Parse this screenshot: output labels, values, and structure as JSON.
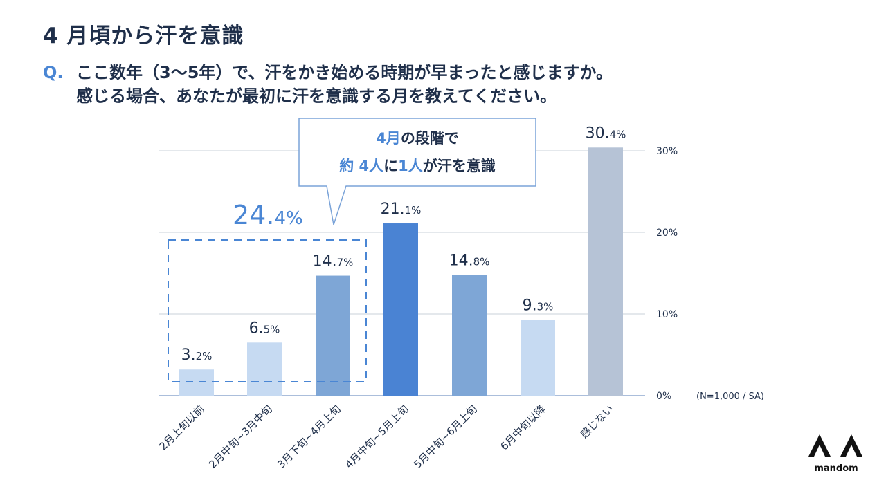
{
  "title": "4 月頃から汗を意識",
  "question": {
    "mark": "Q.",
    "line1": "ここ数年（3～5年）で、汗をかき始める時期が早まったと感じますか。",
    "line2": "感じる場合、あなたが最初に汗を意識する月を教えてください。"
  },
  "chart_data": {
    "type": "bar",
    "categories": [
      "2月上旬以前",
      "2月中旬~3月中旬",
      "3月下旬~4月上旬",
      "4月中旬~5月上旬",
      "5月中旬~6月上旬",
      "6月中旬以降",
      "感じない"
    ],
    "values": [
      3.2,
      6.5,
      14.7,
      21.1,
      14.8,
      9.3,
      30.4
    ],
    "value_labels": [
      {
        "num": "3.",
        "dec": "2%"
      },
      {
        "num": "6.",
        "dec": "5%"
      },
      {
        "num": "14.",
        "dec": "7%"
      },
      {
        "num": "21.",
        "dec": "1%"
      },
      {
        "num": "14.",
        "dec": "8%"
      },
      {
        "num": "9.",
        "dec": "3%"
      },
      {
        "num": "30.",
        "dec": "4%"
      }
    ],
    "ylim": [
      0,
      30
    ],
    "yticks": [
      "0%",
      "10%",
      "20%",
      "30%"
    ],
    "grid": true,
    "axis_position": "right",
    "note": "(N=1,000 / SA)",
    "highlight_group": {
      "label_num": "24.",
      "label_dec": "4%",
      "categories": [
        0,
        1,
        2
      ]
    },
    "callout": {
      "line1_accent": "4月",
      "line1_rest": "の段階で",
      "line2": [
        {
          "text": "約 ",
          "accent": true
        },
        {
          "text": "4人",
          "accent": true
        },
        {
          "text": "に",
          "accent": false
        },
        {
          "text": "1人",
          "accent": true
        },
        {
          "text": "が汗を意識",
          "accent": false
        }
      ]
    },
    "colors": [
      "#c6daf2",
      "#c6daf2",
      "#7ea6d6",
      "#4a83d3",
      "#7ea6d6",
      "#c6daf2",
      "#b6c3d6"
    ],
    "accent_color": "#4a86d4",
    "grid_color": "#c9d0da",
    "text_color": "#1f2f4a"
  },
  "logo": {
    "text": "mandom"
  }
}
